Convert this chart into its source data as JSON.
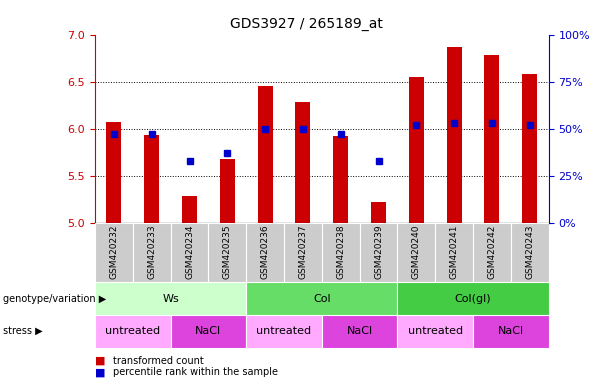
{
  "title": "GDS3927 / 265189_at",
  "samples": [
    "GSM420232",
    "GSM420233",
    "GSM420234",
    "GSM420235",
    "GSM420236",
    "GSM420237",
    "GSM420238",
    "GSM420239",
    "GSM420240",
    "GSM420241",
    "GSM420242",
    "GSM420243"
  ],
  "transformed_count": [
    6.07,
    5.93,
    5.28,
    5.68,
    6.45,
    6.28,
    5.92,
    5.22,
    6.55,
    6.87,
    6.78,
    6.58
  ],
  "percentile_rank": [
    47,
    47,
    33,
    37,
    50,
    50,
    47,
    33,
    52,
    53,
    53,
    52
  ],
  "bar_color": "#cc0000",
  "dot_color": "#0000cc",
  "ylim_left": [
    5.0,
    7.0
  ],
  "ylim_right": [
    0,
    100
  ],
  "yticks_left": [
    5.0,
    5.5,
    6.0,
    6.5,
    7.0
  ],
  "yticks_right": [
    0,
    25,
    50,
    75,
    100
  ],
  "ytick_labels_right": [
    "0%",
    "25%",
    "50%",
    "75%",
    "100%"
  ],
  "gridlines": [
    5.5,
    6.0,
    6.5
  ],
  "genotype_groups": [
    {
      "label": "Ws",
      "start": 0,
      "end": 4,
      "color": "#ccffcc"
    },
    {
      "label": "Col",
      "start": 4,
      "end": 8,
      "color": "#66dd66"
    },
    {
      "label": "Col(gl)",
      "start": 8,
      "end": 12,
      "color": "#44cc44"
    }
  ],
  "stress_groups": [
    {
      "label": "untreated",
      "start": 0,
      "end": 2,
      "color": "#ffaaff"
    },
    {
      "label": "NaCl",
      "start": 2,
      "end": 4,
      "color": "#dd44dd"
    },
    {
      "label": "untreated",
      "start": 4,
      "end": 6,
      "color": "#ffaaff"
    },
    {
      "label": "NaCl",
      "start": 6,
      "end": 8,
      "color": "#dd44dd"
    },
    {
      "label": "untreated",
      "start": 8,
      "end": 10,
      "color": "#ffaaff"
    },
    {
      "label": "NaCl",
      "start": 10,
      "end": 12,
      "color": "#dd44dd"
    }
  ],
  "legend_bar_label": "transformed count",
  "legend_dot_label": "percentile rank within the sample",
  "ylabel_left_color": "#cc0000",
  "ylabel_right_color": "#0000cc",
  "genotype_label": "genotype/variation",
  "stress_label": "stress",
  "sample_bg_color": "#cccccc",
  "sample_text_color": "#000000"
}
